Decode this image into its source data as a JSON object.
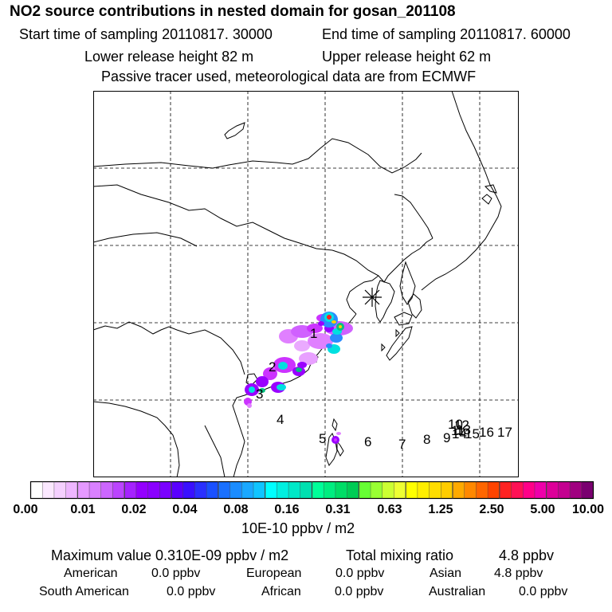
{
  "title": "NO2 source contributions in nested domain for gosan_201108",
  "header": {
    "start": "Start time of sampling 20110817. 30000",
    "end": "End time of sampling 20110817. 60000",
    "lower": "Lower release height   82 m",
    "upper": "Upper release height   62 m",
    "tracer": "Passive tracer used, meteorological data are from ECMWF"
  },
  "map": {
    "receptor_symbol": "asterisk",
    "source_labels": [
      "1",
      "2",
      "3",
      "4",
      "5",
      "6",
      "7",
      "8",
      "9",
      "10",
      "11",
      "12",
      "13",
      "14",
      "15",
      "16",
      "17"
    ],
    "plume_colors": [
      "#9a00ff",
      "#cc33ff",
      "#e080ff",
      "#00e0e0",
      "#00c080",
      "#2a8cff",
      "#ff2020",
      "#ffd000"
    ]
  },
  "colorbar": {
    "ticks": [
      "0.00",
      "0.01",
      "0.02",
      "0.04",
      "0.08",
      "0.16",
      "0.31",
      "0.63",
      "1.25",
      "2.50",
      "5.00",
      "10.00"
    ],
    "unit": "10E-10 ppbv / m2",
    "colors": [
      "#ffffff",
      "#fbe8ff",
      "#f5d0ff",
      "#eeb6ff",
      "#e599ff",
      "#d980ff",
      "#cc66ff",
      "#bb44ff",
      "#a522ff",
      "#9400ff",
      "#8a00ff",
      "#7a00ff",
      "#5a00ff",
      "#3a10ff",
      "#2a30ff",
      "#1a50ff",
      "#1a70ff",
      "#1a8cff",
      "#1aa8ff",
      "#10c4ff",
      "#00ffff",
      "#00f0e0",
      "#00e8c8",
      "#00e0b0",
      "#00ff99",
      "#00ee80",
      "#00dd66",
      "#00cc55",
      "#66ff33",
      "#99ff33",
      "#ccff33",
      "#eeff33",
      "#ffff00",
      "#ffee00",
      "#ffdd00",
      "#ffcc00",
      "#ffaa00",
      "#ff8800",
      "#ff6600",
      "#ff4400",
      "#ff2222",
      "#ff1155",
      "#ff0088",
      "#ee00aa",
      "#dd0099",
      "#c40090",
      "#a00080",
      "#7a0070"
    ]
  },
  "stats": {
    "max": "Maximum value  0.310E-09 ppbv / m2",
    "total_label": "Total mixing ratio",
    "total_value": "4.8 ppbv",
    "american_label": "American",
    "american_value": "0.0 ppbv",
    "european_label": "European",
    "european_value": "0.0 ppbv",
    "asian_label": "Asian",
    "asian_value": "4.8 ppbv",
    "south_american_label": "South American",
    "south_american_value": "0.0 ppbv",
    "african_label": "African",
    "african_value": "0.0 ppbv",
    "australian_label": "Australian",
    "australian_value": "0.0 ppbv"
  }
}
